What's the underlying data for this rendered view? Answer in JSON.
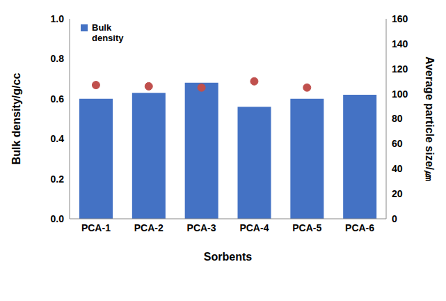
{
  "chart_data": {
    "type": "bar",
    "x_label": "Sorbents",
    "categories": [
      "PCA-1",
      "PCA-2",
      "PCA-3",
      "PCA-4",
      "PCA-5",
      "PCA-6"
    ],
    "series": [
      {
        "name": "Bulk density",
        "type": "bar",
        "color": "#4472c4",
        "values": [
          0.6,
          0.63,
          0.68,
          0.56,
          0.6,
          0.62
        ]
      },
      {
        "type": "scatter",
        "marker": "circle",
        "color": "#c0504d",
        "axis": "y2",
        "values": [
          107,
          106,
          105,
          110,
          105,
          null
        ]
      }
    ],
    "y_label": "Bulk density/g/cc",
    "y2_label": "Average particle size/㎛",
    "ylim": [
      0,
      1.0
    ],
    "yticks": [
      {
        "value": 0,
        "label": "0.0"
      },
      0.2,
      0.4,
      0.6,
      0.8,
      {
        "value": 1.0,
        "label": "1.0"
      }
    ],
    "y2lim": [
      0,
      160
    ],
    "y2ticks": [
      0,
      20,
      40,
      60,
      80,
      100,
      120,
      140,
      160
    ],
    "legend": "upper left",
    "grid": false
  }
}
